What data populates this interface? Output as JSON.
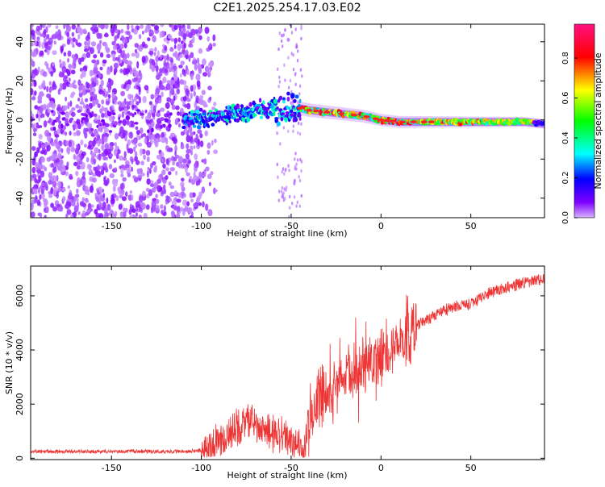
{
  "title": "C2E1.2025.254.17.03.E02",
  "chart_data": [
    {
      "type": "heatmap",
      "title": "C2E1.2025.254.17.03.E02",
      "xlabel": "Height of straight line (km)",
      "ylabel": "Frequency (Hz)",
      "xlim": [
        -195,
        91
      ],
      "ylim": [
        -50,
        49
      ],
      "xticks": [
        -150,
        -100,
        -50,
        0,
        50
      ],
      "yticks": [
        -40,
        -20,
        0,
        20,
        40
      ],
      "xtick_labels": [
        "-150",
        "-100",
        "-50",
        "0",
        "50"
      ],
      "ytick_labels": [
        "-40",
        "-20",
        "0",
        "20",
        "40"
      ],
      "colorbar": {
        "label": "Normalized spectral amplitude",
        "range": [
          0,
          0.97
        ],
        "ticks": [
          0.0,
          0.2,
          0.4,
          0.6,
          0.8
        ],
        "tick_labels": [
          "0.0",
          "0.2",
          "0.4",
          "0.6",
          "0.8"
        ],
        "colormap": [
          "#d8b2ff",
          "#7f00ff",
          "#0000ff",
          "#00ffff",
          "#00ff00",
          "#ffff00",
          "#ff0000",
          "#ff0080"
        ]
      },
      "ridge": {
        "x": [
          -195,
          -150,
          -110,
          -100,
          -90,
          -80,
          -70,
          -60,
          -50,
          -45,
          -40,
          -30,
          -20,
          -10,
          0,
          10,
          20,
          30,
          40,
          50,
          60,
          70,
          80,
          91
        ],
        "y": [
          2,
          0,
          0,
          1,
          2,
          3,
          5,
          6,
          7,
          6,
          5,
          4,
          3,
          2,
          0,
          -1,
          -1,
          -1,
          -1,
          -1,
          -1,
          -1,
          -1,
          -2
        ]
      }
    },
    {
      "type": "line",
      "xlabel": "Height of straight line (km)",
      "ylabel": "SNR (10 * v/v)",
      "xlim": [
        -195,
        91
      ],
      "ylim": [
        -50,
        7100
      ],
      "xticks": [
        -150,
        -100,
        -50,
        0,
        50
      ],
      "yticks": [
        0,
        2000,
        4000,
        6000
      ],
      "xtick_labels": [
        "-150",
        "-100",
        "-50",
        "0",
        "50"
      ],
      "ytick_labels": [
        "0",
        "2000",
        "4000",
        "6000"
      ],
      "series": [
        {
          "name": "SNR",
          "color": "#ee3333",
          "x": [
            -195,
            -150,
            -110,
            -100,
            -90,
            -80,
            -75,
            -70,
            -60,
            -55,
            -50,
            -42,
            -40,
            -35,
            -30,
            -20,
            -10,
            0,
            10,
            20,
            30,
            40,
            50,
            60,
            70,
            80,
            91
          ],
          "y": [
            250,
            250,
            250,
            280,
            550,
            1100,
            1400,
            1200,
            900,
            800,
            650,
            450,
            1500,
            2000,
            2400,
            2900,
            3300,
            3700,
            4300,
            4900,
            5300,
            5600,
            5700,
            6100,
            6300,
            6500,
            6600
          ]
        }
      ]
    }
  ]
}
